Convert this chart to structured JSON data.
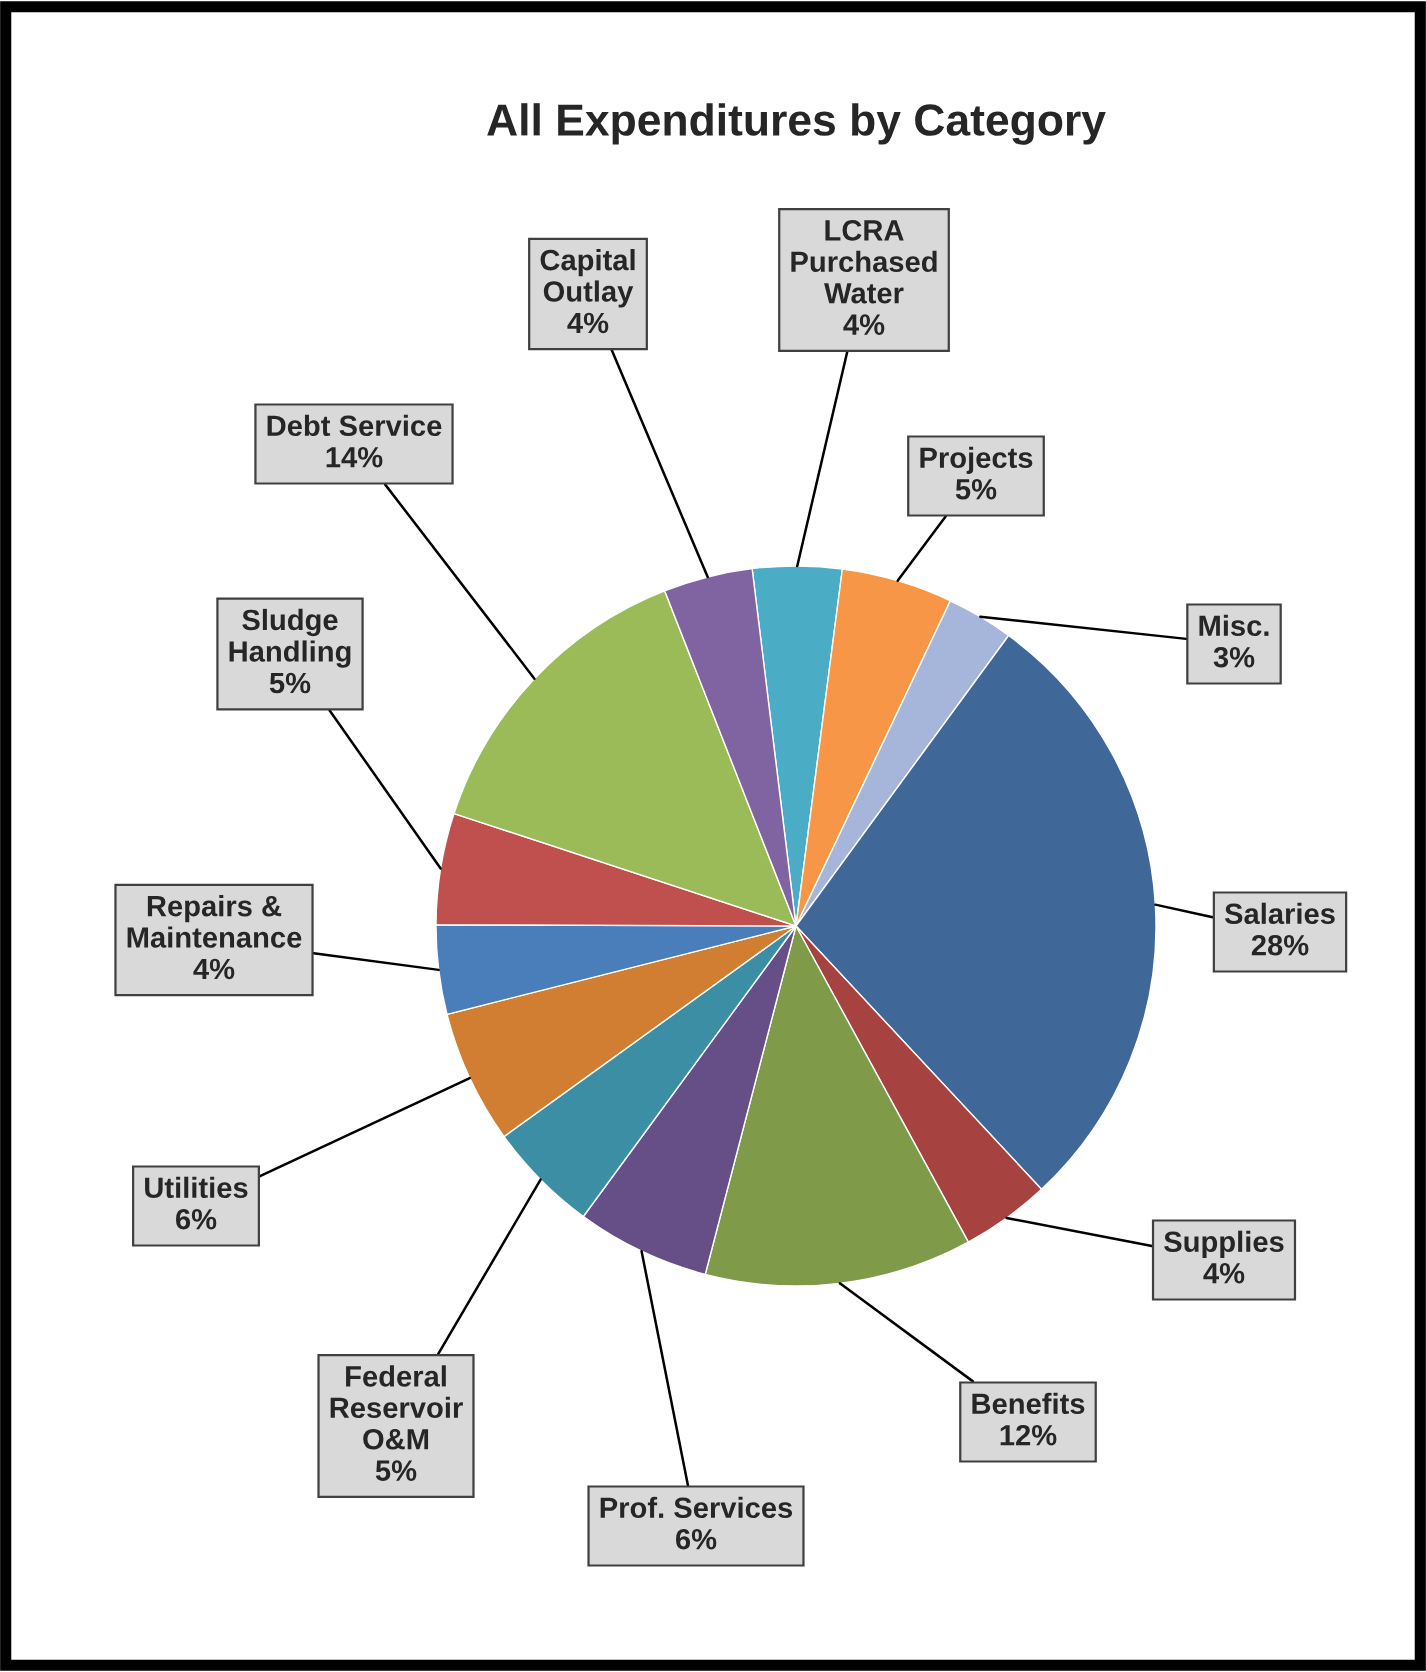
{
  "chart_data": {
    "type": "pie",
    "title": "All Expenditures by Category",
    "categories": [
      "LCRA\nPurchased\nWater",
      "Projects",
      "Misc.",
      "Salaries",
      "Supplies",
      "Benefits",
      "Prof. Services",
      "Federal\nReservoir\nO&M",
      "Utilities",
      "Repairs &\nMaintenance",
      "Sludge\nHandling",
      "Debt Service",
      "Capital\nOutlay"
    ],
    "values": [
      4,
      5,
      3,
      28,
      4,
      12,
      6,
      5,
      6,
      4,
      5,
      14,
      4
    ],
    "value_labels": [
      "4%",
      "5%",
      "3%",
      "28%",
      "4%",
      "12%",
      "6%",
      "5%",
      "6%",
      "4%",
      "5%",
      "14%",
      "4%"
    ],
    "colors": [
      "#4bacc6",
      "#f79646",
      "#a5b6da",
      "#3f6797",
      "#a64340",
      "#7f9a48",
      "#664e87",
      "#3c8ea5",
      "#d17e32",
      "#4a7ebb",
      "#c0504d",
      "#9bbb59",
      "#8064a2"
    ],
    "legend": false
  }
}
